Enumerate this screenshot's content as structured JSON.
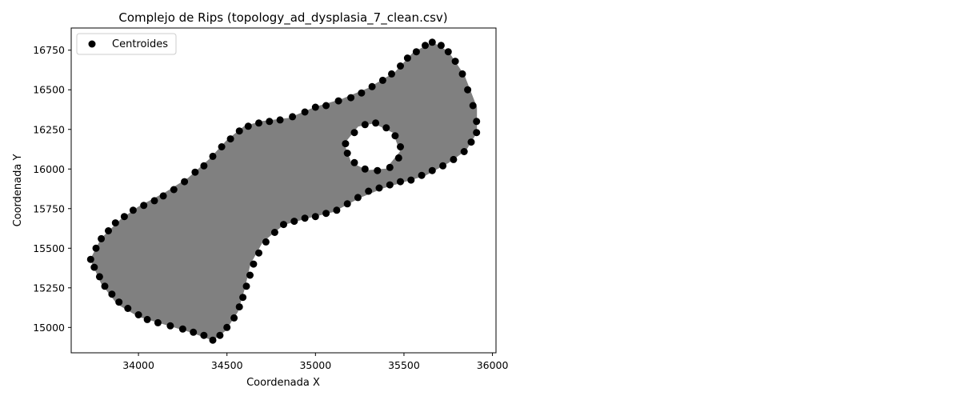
{
  "chart_data": {
    "type": "scatter",
    "title": "Complejo de Rips (topology_ad_dysplasia_7_clean.csv)",
    "xlabel": "Coordenada X",
    "ylabel": "Coordenada Y",
    "xlim": [
      33620,
      36020
    ],
    "ylim": [
      14840,
      16890
    ],
    "xticks": [
      34000,
      34500,
      35000,
      35500,
      36000
    ],
    "xtick_labels": [
      "34000",
      "34500",
      "35000",
      "35500",
      "36000"
    ],
    "yticks": [
      15000,
      15250,
      15500,
      15750,
      16000,
      16250,
      16500,
      16750
    ],
    "ytick_labels": [
      "15000",
      "15250",
      "15500",
      "15750",
      "16000",
      "16250",
      "16500",
      "16750"
    ],
    "legend": {
      "position": "top-left",
      "entries": [
        {
          "label": "Centroides",
          "color": "#000000",
          "marker": "circle"
        }
      ]
    },
    "grid": false,
    "colors": {
      "points": "#000000",
      "complex": "#808080"
    },
    "complex_outer": [
      [
        33730,
        15430
      ],
      [
        33790,
        15560
      ],
      [
        33900,
        15680
      ],
      [
        34000,
        15760
      ],
      [
        34150,
        15850
      ],
      [
        34280,
        15940
      ],
      [
        34400,
        16060
      ],
      [
        34500,
        16180
      ],
      [
        34600,
        16270
      ],
      [
        34700,
        16300
      ],
      [
        34850,
        16320
      ],
      [
        35000,
        16390
      ],
      [
        35150,
        16440
      ],
      [
        35300,
        16510
      ],
      [
        35450,
        16610
      ],
      [
        35550,
        16730
      ],
      [
        35660,
        16800
      ],
      [
        35750,
        16740
      ],
      [
        35840,
        16590
      ],
      [
        35910,
        16390
      ],
      [
        35910,
        16230
      ],
      [
        35850,
        16120
      ],
      [
        35750,
        16040
      ],
      [
        35620,
        15960
      ],
      [
        35500,
        15920
      ],
      [
        35380,
        15880
      ],
      [
        35250,
        15820
      ],
      [
        35100,
        15730
      ],
      [
        34950,
        15690
      ],
      [
        34820,
        15650
      ],
      [
        34700,
        15540
      ],
      [
        34630,
        15400
      ],
      [
        34600,
        15250
      ],
      [
        34560,
        15100
      ],
      [
        34490,
        14980
      ],
      [
        34420,
        14920
      ],
      [
        34300,
        14970
      ],
      [
        34150,
        15020
      ],
      [
        34000,
        15070
      ],
      [
        33880,
        15150
      ],
      [
        33790,
        15280
      ]
    ],
    "complex_hole": [
      [
        35160,
        16160
      ],
      [
        35240,
        16270
      ],
      [
        35330,
        16290
      ],
      [
        35440,
        16230
      ],
      [
        35480,
        16110
      ],
      [
        35400,
        16000
      ],
      [
        35290,
        15990
      ],
      [
        35200,
        16040
      ]
    ],
    "centroids": [
      [
        33730,
        15430
      ],
      [
        33760,
        15500
      ],
      [
        33790,
        15560
      ],
      [
        33830,
        15610
      ],
      [
        33870,
        15660
      ],
      [
        33920,
        15700
      ],
      [
        33970,
        15740
      ],
      [
        34030,
        15770
      ],
      [
        34090,
        15800
      ],
      [
        34140,
        15830
      ],
      [
        34200,
        15870
      ],
      [
        34260,
        15920
      ],
      [
        34320,
        15980
      ],
      [
        34370,
        16020
      ],
      [
        34420,
        16080
      ],
      [
        34470,
        16140
      ],
      [
        34520,
        16190
      ],
      [
        34570,
        16240
      ],
      [
        34620,
        16270
      ],
      [
        34680,
        16290
      ],
      [
        34740,
        16300
      ],
      [
        34800,
        16310
      ],
      [
        34870,
        16330
      ],
      [
        34940,
        16360
      ],
      [
        35000,
        16390
      ],
      [
        35060,
        16400
      ],
      [
        35130,
        16430
      ],
      [
        35200,
        16450
      ],
      [
        35260,
        16480
      ],
      [
        35320,
        16520
      ],
      [
        35380,
        16560
      ],
      [
        35430,
        16600
      ],
      [
        35480,
        16650
      ],
      [
        35520,
        16700
      ],
      [
        35570,
        16740
      ],
      [
        35620,
        16780
      ],
      [
        35660,
        16800
      ],
      [
        35710,
        16780
      ],
      [
        35750,
        16740
      ],
      [
        35790,
        16680
      ],
      [
        35830,
        16600
      ],
      [
        35860,
        16500
      ],
      [
        35890,
        16400
      ],
      [
        35910,
        16300
      ],
      [
        35910,
        16230
      ],
      [
        35880,
        16170
      ],
      [
        35840,
        16110
      ],
      [
        35780,
        16060
      ],
      [
        35720,
        16020
      ],
      [
        35660,
        15990
      ],
      [
        35600,
        15960
      ],
      [
        35540,
        15930
      ],
      [
        35480,
        15920
      ],
      [
        35420,
        15900
      ],
      [
        35360,
        15880
      ],
      [
        35300,
        15860
      ],
      [
        35240,
        15820
      ],
      [
        35180,
        15780
      ],
      [
        35120,
        15740
      ],
      [
        35060,
        15720
      ],
      [
        35000,
        15700
      ],
      [
        34940,
        15690
      ],
      [
        34880,
        15670
      ],
      [
        34820,
        15650
      ],
      [
        34770,
        15600
      ],
      [
        34720,
        15540
      ],
      [
        34680,
        15470
      ],
      [
        34650,
        15400
      ],
      [
        34630,
        15330
      ],
      [
        34610,
        15260
      ],
      [
        34590,
        15190
      ],
      [
        34570,
        15130
      ],
      [
        34540,
        15060
      ],
      [
        34500,
        15000
      ],
      [
        34460,
        14950
      ],
      [
        34420,
        14920
      ],
      [
        34370,
        14950
      ],
      [
        34310,
        14970
      ],
      [
        34250,
        14990
      ],
      [
        34180,
        15010
      ],
      [
        34110,
        15030
      ],
      [
        34050,
        15050
      ],
      [
        34000,
        15080
      ],
      [
        33940,
        15120
      ],
      [
        33890,
        15160
      ],
      [
        33850,
        15210
      ],
      [
        33810,
        15260
      ],
      [
        33780,
        15320
      ],
      [
        33750,
        15380
      ],
      [
        35170,
        16160
      ],
      [
        35220,
        16230
      ],
      [
        35280,
        16280
      ],
      [
        35340,
        16290
      ],
      [
        35400,
        16260
      ],
      [
        35450,
        16210
      ],
      [
        35480,
        16140
      ],
      [
        35470,
        16070
      ],
      [
        35420,
        16010
      ],
      [
        35350,
        15990
      ],
      [
        35280,
        16000
      ],
      [
        35220,
        16040
      ],
      [
        35180,
        16100
      ]
    ]
  }
}
